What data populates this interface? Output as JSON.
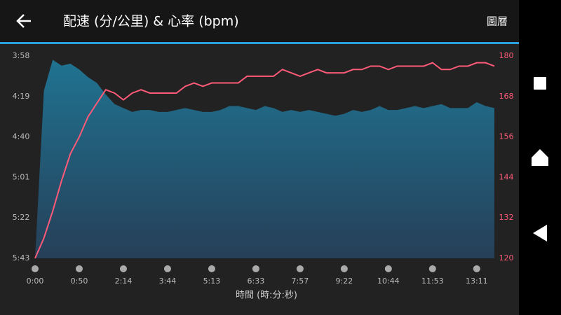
{
  "header": {
    "title": "配速 (分/公里) & 心率 (bpm)",
    "layers_button": "圖層"
  },
  "chart_data": {
    "type": "combo",
    "x_label": "時間 (時:分:秒)",
    "categories": [
      "0:00",
      null,
      null,
      null,
      null,
      "0:50",
      null,
      null,
      null,
      null,
      "2:14",
      null,
      null,
      null,
      null,
      "3:44",
      null,
      null,
      null,
      null,
      "5:13",
      null,
      null,
      null,
      null,
      "6:33",
      null,
      null,
      null,
      null,
      "7:57",
      null,
      null,
      null,
      null,
      "9:22",
      null,
      null,
      null,
      null,
      "10:44",
      null,
      null,
      null,
      null,
      "11:53",
      null,
      null,
      null,
      null,
      "13:11",
      null,
      null
    ],
    "series": [
      {
        "type": "area",
        "axis": "y",
        "color": "#1f7391",
        "color_bottom": "#263f58",
        "values": [
          343,
          256,
          240,
          243,
          242,
          245,
          249,
          252,
          258,
          263,
          265,
          267,
          266,
          266,
          267,
          267,
          266,
          265,
          266,
          267,
          267,
          266,
          264,
          264,
          265,
          266,
          264,
          265,
          267,
          266,
          267,
          266,
          267,
          268,
          269,
          268,
          266,
          267,
          266,
          264,
          266,
          266,
          265,
          264,
          265,
          264,
          263,
          265,
          265,
          265,
          262,
          264,
          265
        ]
      },
      {
        "type": "line",
        "axis": "y2",
        "color": "#ff5a78",
        "values": [
          120,
          126,
          134,
          143,
          151,
          156,
          162,
          166,
          170,
          169,
          167,
          169,
          170,
          169,
          169,
          169,
          169,
          171,
          172,
          171,
          172,
          172,
          172,
          172,
          174,
          174,
          174,
          174,
          176,
          175,
          174,
          175,
          176,
          175,
          175,
          175,
          176,
          176,
          177,
          177,
          176,
          177,
          177,
          177,
          177,
          178,
          176,
          176,
          177,
          177,
          178,
          178,
          177
        ]
      }
    ],
    "ylim": [
      343,
      238
    ],
    "yticks": [
      {
        "value": 238,
        "label": "3:58"
      },
      {
        "value": 259,
        "label": "4:19"
      },
      {
        "value": 280,
        "label": "4:40"
      },
      {
        "value": 301,
        "label": "5:01"
      },
      {
        "value": 322,
        "label": "5:22"
      },
      {
        "value": 343,
        "label": "5:43"
      }
    ],
    "y2lim": [
      120,
      180
    ],
    "y2ticks": [
      120,
      132,
      144,
      156,
      168,
      180
    ],
    "y2_color": "#ff5a78",
    "grid": false
  }
}
